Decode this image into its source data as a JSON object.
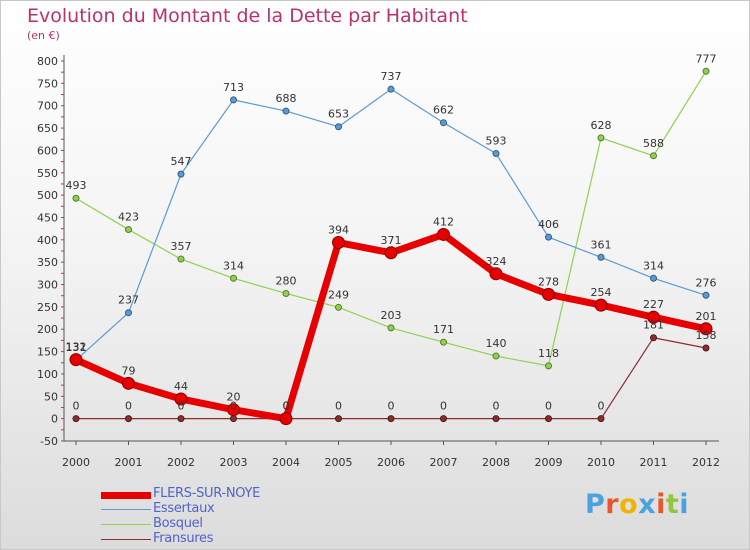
{
  "header": {
    "title": "Evolution du Montant de la Dette par Habitant",
    "subtitle": "(en €)"
  },
  "chart_data": {
    "type": "line",
    "title": "Evolution du Montant de la Dette par Habitant",
    "subtitle": "(en €)",
    "x": [
      "2000",
      "2001",
      "2002",
      "2003",
      "2004",
      "2005",
      "2006",
      "2007",
      "2008",
      "2009",
      "2010",
      "2011",
      "2012"
    ],
    "yticks": [
      800,
      750,
      700,
      650,
      600,
      550,
      500,
      450,
      400,
      350,
      300,
      250,
      200,
      150,
      100,
      50,
      0,
      -50
    ],
    "ylim": [
      -50,
      800
    ],
    "grid": false,
    "legend_position": "bottom-left",
    "series": [
      {
        "name": "FLERS-SUR-NOYE",
        "color": "#e60000",
        "values": [
          132,
          79,
          44,
          20,
          0,
          394,
          371,
          412,
          324,
          278,
          254,
          227,
          201
        ],
        "labels": [
          "132",
          "79",
          "44",
          "20",
          "0",
          "394",
          "371",
          "412",
          "324",
          "278",
          "254",
          "227",
          "201"
        ]
      },
      {
        "name": "Essertaux",
        "color": "#5b9bd5",
        "values": [
          131,
          237,
          547,
          713,
          688,
          653,
          737,
          662,
          593,
          406,
          361,
          314,
          276
        ],
        "labels": [
          "131",
          "237",
          "547",
          "713",
          "688",
          "653",
          "737",
          "662",
          "593",
          "406",
          "361",
          "314",
          "276"
        ]
      },
      {
        "name": "Bosquel",
        "color": "#8fd14f",
        "values": [
          493,
          423,
          357,
          314,
          280,
          249,
          203,
          171,
          140,
          118,
          628,
          588,
          777
        ],
        "labels": [
          "493",
          "423",
          "357",
          "314",
          "280",
          "249",
          "203",
          "171",
          "140",
          "118",
          "628",
          "588",
          "777"
        ]
      },
      {
        "name": "Fransures",
        "color": "#8b2e2e",
        "values": [
          0,
          0,
          0,
          0,
          0,
          0,
          0,
          0,
          0,
          0,
          0,
          181,
          158
        ],
        "labels": [
          "0",
          "0",
          "0",
          "0",
          "0",
          "0",
          "0",
          "0",
          "0",
          "0",
          "0",
          "181",
          "158"
        ]
      }
    ]
  },
  "legend": {
    "items": [
      {
        "label": "FLERS-SUR-NOYE",
        "color": "#e60000"
      },
      {
        "label": "Essertaux",
        "color": "#5b9bd5"
      },
      {
        "label": "Bosquel",
        "color": "#8fd14f"
      },
      {
        "label": "Fransures",
        "color": "#8b2e2e"
      }
    ]
  },
  "logo": {
    "letters": [
      "P",
      "r",
      "o",
      "x",
      "i",
      "t",
      "i"
    ],
    "colors": [
      "#4aa3df",
      "#e8572b",
      "#f0b400",
      "#4aa3df",
      "#e8572b",
      "#8fc73e",
      "#4aa3df"
    ]
  }
}
